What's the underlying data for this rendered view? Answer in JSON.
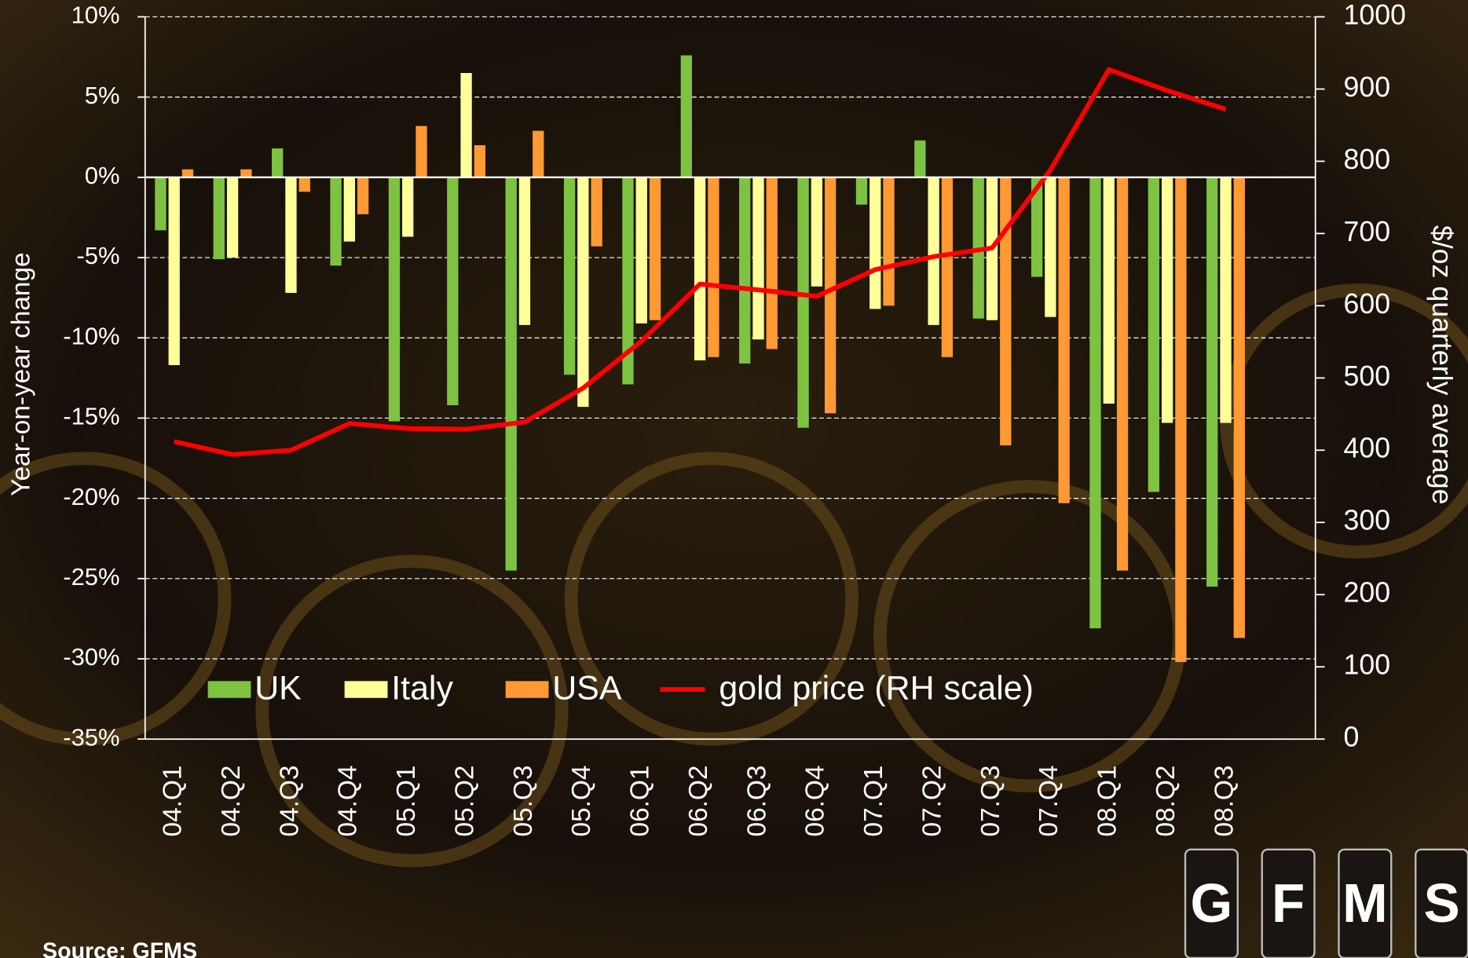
{
  "chart_data": {
    "type": "bar",
    "categories": [
      "04.Q1",
      "04.Q2",
      "04.Q3",
      "04.Q4",
      "05.Q1",
      "05.Q2",
      "05.Q3",
      "05.Q4",
      "06.Q1",
      "06.Q2",
      "06.Q3",
      "06.Q4",
      "07.Q1",
      "07.Q2",
      "07.Q3",
      "07.Q4",
      "08.Q1",
      "08.Q2",
      "08.Q3"
    ],
    "series": [
      {
        "name": "UK",
        "color": "#7ec242",
        "values": [
          -3.3,
          -5.1,
          1.8,
          -5.5,
          -15.2,
          -14.2,
          -24.5,
          -12.3,
          -12.9,
          7.6,
          -11.6,
          -15.6,
          -1.7,
          2.3,
          -8.8,
          -6.2,
          -28.1,
          -19.6,
          -25.5
        ]
      },
      {
        "name": "Italy",
        "color": "#ffff99",
        "values": [
          -11.7,
          -5.0,
          -7.2,
          -4.0,
          -3.7,
          6.5,
          -9.2,
          -14.3,
          -9.1,
          -11.4,
          -10.1,
          -6.8,
          -8.2,
          -9.2,
          -8.9,
          -8.7,
          -14.1,
          -15.3,
          -15.3
        ]
      },
      {
        "name": "USA",
        "color": "#ff9933",
        "values": [
          0.5,
          0.5,
          -0.9,
          -2.3,
          3.2,
          2.0,
          2.9,
          -4.3,
          -8.9,
          -11.2,
          -10.7,
          -14.7,
          -8.0,
          -11.2,
          -16.7,
          -20.3,
          -24.5,
          -30.2,
          -28.7
        ]
      },
      {
        "name": "gold price (RH scale)",
        "color": "#ff0000",
        "axis": "y2",
        "values": [
          412,
          394,
          400,
          437,
          430,
          429,
          439,
          486,
          551,
          630,
          622,
          613,
          650,
          668,
          680,
          788,
          927,
          898,
          872
        ]
      }
    ],
    "y_label": "Year-on-year change",
    "y2_label": "$/oz quarterly average",
    "ylim": [
      -35,
      10
    ],
    "yticks": [
      {
        "value": -35,
        "label": "-35%"
      },
      {
        "value": -30,
        "label": "-30%"
      },
      {
        "value": -25,
        "label": "-25%"
      },
      {
        "value": -20,
        "label": "-20%"
      },
      {
        "value": -15,
        "label": "-15%"
      },
      {
        "value": -10,
        "label": "-10%"
      },
      {
        "value": -5,
        "label": "-5%"
      },
      {
        "value": 0,
        "label": "0%"
      },
      {
        "value": 5,
        "label": "5%"
      },
      {
        "value": 10,
        "label": "10%"
      }
    ],
    "y2lim": [
      0,
      1000
    ],
    "y2ticks": [
      0,
      100,
      200,
      300,
      400,
      500,
      600,
      700,
      800,
      900,
      1000
    ],
    "grid": true,
    "legend": "bottom-left",
    "source": "Source: GFMS",
    "logo": [
      "G",
      "F",
      "M",
      "S"
    ]
  }
}
